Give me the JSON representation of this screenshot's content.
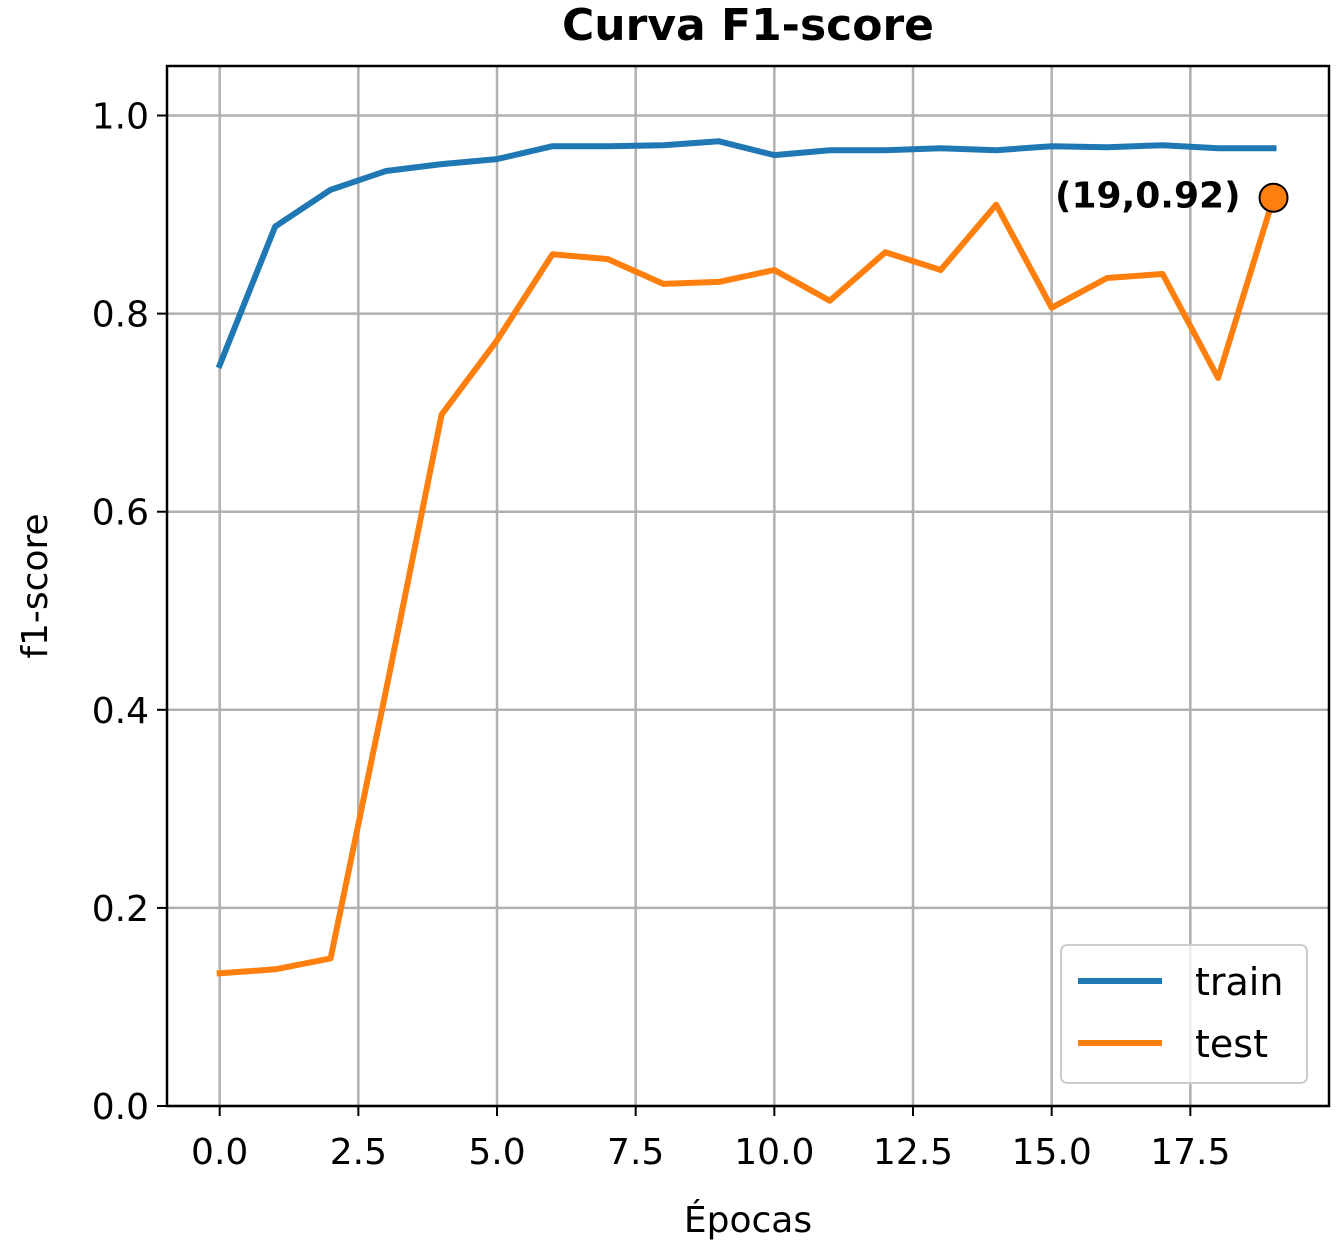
{
  "chart_data": {
    "type": "line",
    "title": "Curva F1-score",
    "xlabel": "Épocas",
    "ylabel": "f1-score",
    "xlim": [
      -0.95,
      20
    ],
    "ylim": [
      0,
      1.05
    ],
    "xticks": [
      0,
      2.5,
      5,
      7.5,
      10,
      12.5,
      15,
      17.5
    ],
    "xtick_labels": [
      "0.0",
      "2.5",
      "5.0",
      "7.5",
      "10.0",
      "12.5",
      "15.0",
      "17.5"
    ],
    "yticks": [
      0,
      0.2,
      0.4,
      0.6,
      0.8,
      1.0
    ],
    "ytick_labels": [
      "0.0",
      "0.2",
      "0.4",
      "0.6",
      "0.8",
      "1.0"
    ],
    "grid": true,
    "legend_position": "lower-right",
    "x": [
      0,
      1,
      2,
      3,
      4,
      5,
      6,
      7,
      8,
      9,
      10,
      11,
      12,
      13,
      14,
      15,
      16,
      17,
      18,
      19
    ],
    "series": [
      {
        "name": "train",
        "color": "#1f77b4",
        "values": [
          0.748,
          0.888,
          0.925,
          0.944,
          0.951,
          0.956,
          0.969,
          0.969,
          0.97,
          0.974,
          0.96,
          0.965,
          0.965,
          0.967,
          0.965,
          0.969,
          0.968,
          0.97,
          0.967,
          0.967
        ]
      },
      {
        "name": "test",
        "color": "#ff7f0e",
        "values": [
          0.134,
          0.138,
          0.149,
          0.42,
          0.698,
          0.773,
          0.86,
          0.855,
          0.83,
          0.832,
          0.844,
          0.813,
          0.862,
          0.844,
          0.91,
          0.806,
          0.836,
          0.84,
          0.735,
          0.917
        ]
      }
    ],
    "annotation": {
      "text": "(19,0.92)",
      "x": 19,
      "y": 0.917,
      "marker_color": "#ff7f0e"
    }
  }
}
